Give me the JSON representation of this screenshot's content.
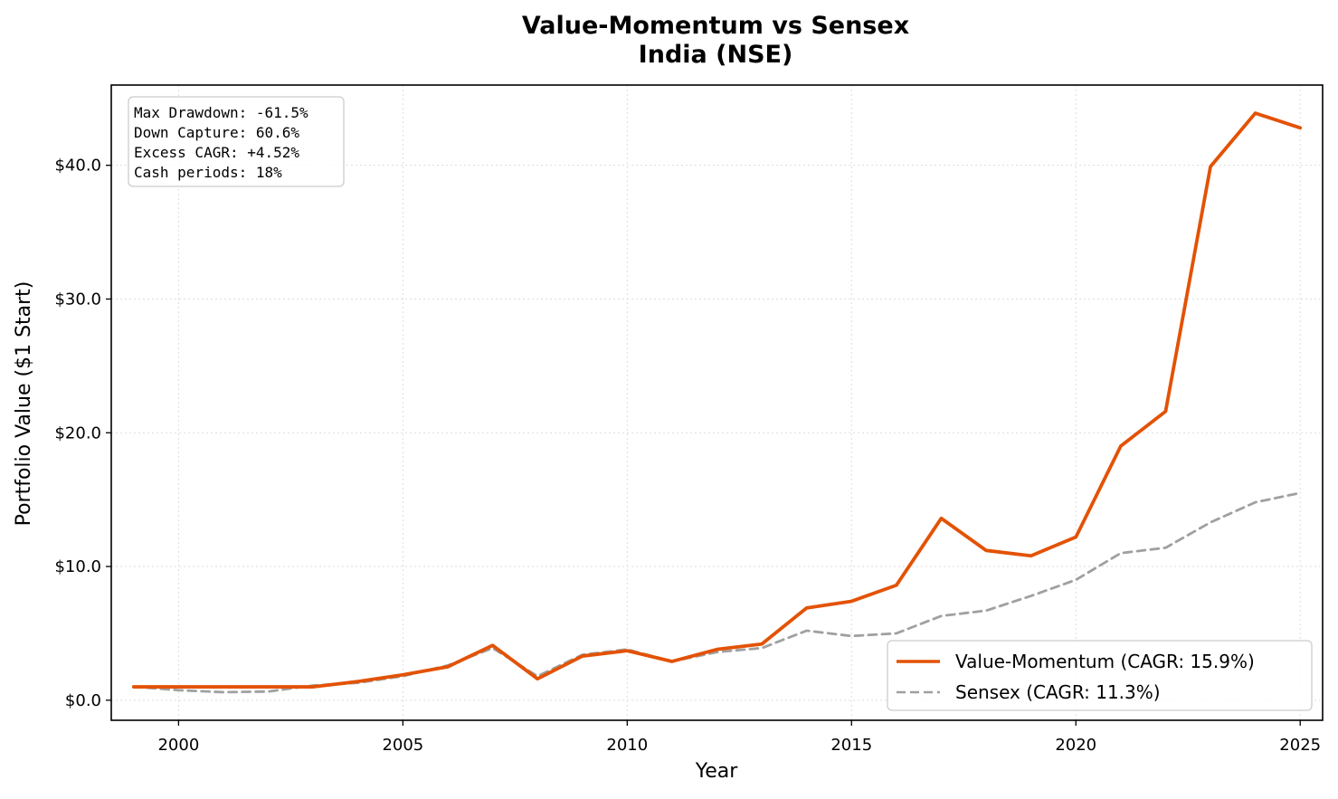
{
  "chart_data": {
    "type": "line",
    "title": "Value-Momentum vs Sensex",
    "subtitle": "India (NSE)",
    "xlabel": "Year",
    "ylabel": "Portfolio Value ($1 Start)",
    "xlim": [
      1998.5,
      2025.5
    ],
    "ylim": [
      -1.5,
      46.0
    ],
    "x_ticks": [
      2000,
      2005,
      2010,
      2015,
      2020,
      2025
    ],
    "x_tick_labels": [
      "2000",
      "2005",
      "2010",
      "2015",
      "2020",
      "2025"
    ],
    "y_ticks": [
      0,
      10,
      20,
      30,
      40
    ],
    "y_tick_labels": [
      "$0.0",
      "$10.0",
      "$20.0",
      "$30.0",
      "$40.0"
    ],
    "grid": true,
    "legend_position": "bottom-right",
    "x": [
      1999,
      2000,
      2001,
      2002,
      2003,
      2004,
      2005,
      2006,
      2007,
      2008,
      2009,
      2010,
      2011,
      2012,
      2013,
      2014,
      2015,
      2016,
      2017,
      2018,
      2019,
      2020,
      2021,
      2022,
      2023,
      2024,
      2025
    ],
    "series": [
      {
        "name": "Value-Momentum  (CAGR: 15.9%)",
        "color": "#e35205",
        "style": "solid",
        "values": [
          1.0,
          1.0,
          1.0,
          1.0,
          1.0,
          1.4,
          1.9,
          2.5,
          4.1,
          1.6,
          3.3,
          3.7,
          2.9,
          3.8,
          4.2,
          6.9,
          7.4,
          8.6,
          13.6,
          11.2,
          10.8,
          12.2,
          19.0,
          21.6,
          39.9,
          43.9,
          42.8
        ]
      },
      {
        "name": "Sensex  (CAGR: 11.3%)",
        "color": "#a0a0a0",
        "style": "dashed",
        "values": [
          1.0,
          0.75,
          0.6,
          0.65,
          1.1,
          1.3,
          1.8,
          2.6,
          3.9,
          1.8,
          3.4,
          3.8,
          2.9,
          3.6,
          3.9,
          5.2,
          4.8,
          5.0,
          6.3,
          6.7,
          7.8,
          9.0,
          11.0,
          11.4,
          13.3,
          14.8,
          15.5
        ]
      }
    ],
    "annotation_lines": [
      "Max Drawdown: -61.5%",
      "Down Capture: 60.6%",
      "Excess CAGR: +4.52%",
      "Cash periods: 18%"
    ]
  }
}
